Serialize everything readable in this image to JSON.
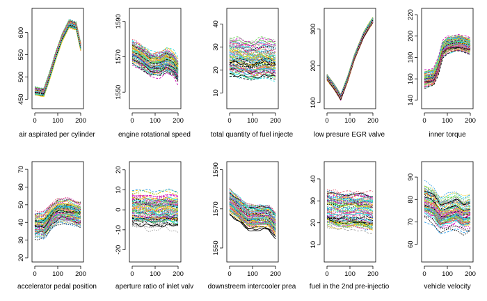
{
  "palette": [
    "#000000",
    "#DF536B",
    "#61D04F",
    "#2297E6",
    "#28E2E5",
    "#CD0BBC",
    "#F5C710",
    "#9E9E9E"
  ],
  "chart_data": [
    {
      "type": "line",
      "xlabel": "air aspirated per cylinder",
      "x": [
        0,
        200
      ],
      "xticks": [
        0,
        100,
        200
      ],
      "ylim": [
        438,
        645
      ],
      "yticks": [
        450,
        500,
        550,
        600
      ],
      "ytick_labels": [
        "450",
        "500",
        "550",
        "600"
      ],
      "n_curves": 90,
      "mean_curve": [
        [
          0,
          468
        ],
        [
          40,
          465
        ],
        [
          60,
          495
        ],
        [
          90,
          545
        ],
        [
          120,
          590
        ],
        [
          150,
          620
        ],
        [
          180,
          615
        ],
        [
          200,
          568
        ]
      ],
      "spread": 8
    },
    {
      "type": "line",
      "xlabel": "engine rotational speed",
      "x": [
        0,
        200
      ],
      "xticks": [
        0,
        100,
        200
      ],
      "ylim": [
        1543,
        1595
      ],
      "yticks": [
        1550,
        1570,
        1590
      ],
      "ytick_labels": [
        "1550",
        "1570",
        "1590"
      ],
      "n_curves": 90,
      "mean_curve": [
        [
          0,
          1573
        ],
        [
          40,
          1570
        ],
        [
          80,
          1566
        ],
        [
          120,
          1566
        ],
        [
          150,
          1568
        ],
        [
          180,
          1566
        ],
        [
          200,
          1562
        ]
      ],
      "spread": 6
    },
    {
      "type": "line",
      "xlabel": "total quantity of fuel injecte",
      "x": [
        0,
        200
      ],
      "xticks": [
        0,
        100,
        200
      ],
      "ylim": [
        5,
        45
      ],
      "yticks": [
        10,
        20,
        30,
        40
      ],
      "ytick_labels": [
        "10",
        "20",
        "30",
        "40"
      ],
      "n_curves": 90,
      "mean_curve": [
        [
          0,
          26
        ],
        [
          50,
          25
        ],
        [
          100,
          24
        ],
        [
          150,
          25
        ],
        [
          200,
          24
        ]
      ],
      "spread": 8
    },
    {
      "type": "line",
      "xlabel": "low presure EGR valve",
      "x": [
        0,
        200
      ],
      "xticks": [
        0,
        100,
        200
      ],
      "ylim": [
        95,
        345
      ],
      "yticks": [
        100,
        200,
        300
      ],
      "ytick_labels": [
        "100",
        "200",
        "300"
      ],
      "n_curves": 90,
      "mean_curve": [
        [
          0,
          170
        ],
        [
          30,
          145
        ],
        [
          60,
          115
        ],
        [
          90,
          165
        ],
        [
          120,
          225
        ],
        [
          160,
          285
        ],
        [
          200,
          325
        ]
      ],
      "spread": 7
    },
    {
      "type": "line",
      "xlabel": "inner torque",
      "x": [
        0,
        200
      ],
      "xticks": [
        0,
        100,
        200
      ],
      "ylim": [
        136,
        222
      ],
      "yticks": [
        140,
        160,
        180,
        200,
        220
      ],
      "ytick_labels": [
        "140",
        "160",
        "180",
        "200",
        "220"
      ],
      "n_curves": 90,
      "mean_curve": [
        [
          0,
          160
        ],
        [
          40,
          162
        ],
        [
          60,
          172
        ],
        [
          80,
          188
        ],
        [
          100,
          192
        ],
        [
          150,
          194
        ],
        [
          200,
          191
        ]
      ],
      "spread": 7
    },
    {
      "type": "line",
      "xlabel": "accelerator pedal position",
      "x": [
        0,
        200
      ],
      "xticks": [
        0,
        100,
        200
      ],
      "ylim": [
        20,
        72
      ],
      "yticks": [
        20,
        30,
        40,
        50,
        60,
        70
      ],
      "ytick_labels": [
        "20",
        "30",
        "40",
        "50",
        "60",
        "70"
      ],
      "n_curves": 90,
      "mean_curve": [
        [
          0,
          38
        ],
        [
          40,
          38
        ],
        [
          70,
          43
        ],
        [
          100,
          46
        ],
        [
          150,
          46
        ],
        [
          200,
          44
        ]
      ],
      "spread": 7
    },
    {
      "type": "line",
      "xlabel": "aperture ratio of inlet valv",
      "x": [
        0,
        200
      ],
      "xticks": [
        0,
        100,
        200
      ],
      "ylim": [
        -24,
        22
      ],
      "yticks": [
        -20,
        -10,
        0,
        10,
        20
      ],
      "ytick_labels": [
        "-20",
        "-10",
        "0",
        "10",
        "20"
      ],
      "n_curves": 90,
      "mean_curve": [
        [
          0,
          1
        ],
        [
          50,
          1
        ],
        [
          100,
          0
        ],
        [
          150,
          1
        ],
        [
          200,
          0
        ]
      ],
      "spread": 8
    },
    {
      "type": "line",
      "xlabel": "downstreem intercooler prea",
      "x": [
        0,
        200
      ],
      "xticks": [
        0,
        100,
        200
      ],
      "ylim": [
        1545,
        1592
      ],
      "yticks": [
        1550,
        1570,
        1590
      ],
      "ytick_labels": [
        "1550",
        "1570",
        "1590"
      ],
      "n_curves": 90,
      "mean_curve": [
        [
          0,
          1574
        ],
        [
          40,
          1570
        ],
        [
          80,
          1566
        ],
        [
          130,
          1566
        ],
        [
          170,
          1566
        ],
        [
          200,
          1562
        ]
      ],
      "spread": 6
    },
    {
      "type": "line",
      "xlabel": "fuel in the 2nd pre-injectio",
      "x": [
        0,
        200
      ],
      "xticks": [
        0,
        100,
        200
      ],
      "ylim": [
        4,
        46
      ],
      "yticks": [
        10,
        20,
        30,
        40
      ],
      "ytick_labels": [
        "10",
        "20",
        "30",
        "40"
      ],
      "n_curves": 90,
      "mean_curve": [
        [
          0,
          27
        ],
        [
          50,
          26
        ],
        [
          100,
          26
        ],
        [
          150,
          26
        ],
        [
          200,
          25
        ]
      ],
      "spread": 8
    },
    {
      "type": "line",
      "xlabel": "vehicle velocity",
      "x": [
        0,
        200
      ],
      "xticks": [
        0,
        100,
        200
      ],
      "ylim": [
        54,
        95
      ],
      "yticks": [
        60,
        70,
        80,
        90
      ],
      "ytick_labels": [
        "60",
        "70",
        "80",
        "90"
      ],
      "n_curves": 90,
      "mean_curve": [
        [
          0,
          79
        ],
        [
          40,
          77
        ],
        [
          70,
          73
        ],
        [
          100,
          74
        ],
        [
          140,
          75
        ],
        [
          170,
          73
        ],
        [
          200,
          74
        ]
      ],
      "spread": 7
    }
  ]
}
